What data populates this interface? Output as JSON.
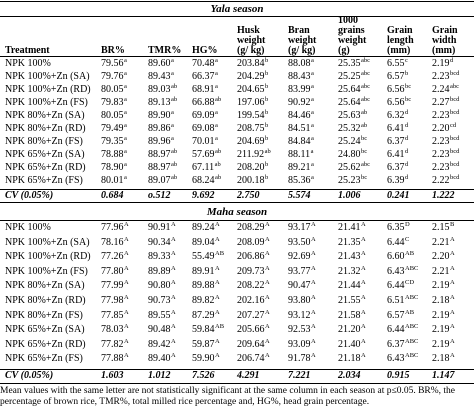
{
  "table": {
    "season1_title": "Yala season",
    "season2_title": "Maha season",
    "headers": [
      {
        "lines": [
          "Treatment"
        ]
      },
      {
        "lines": [
          "BR%"
        ]
      },
      {
        "lines": [
          "TMR%"
        ]
      },
      {
        "lines": [
          "HG%"
        ]
      },
      {
        "lines": [
          "Husk",
          "weight",
          "(g/ kg)"
        ]
      },
      {
        "lines": [
          "Bran",
          "weight",
          "(g/ kg)"
        ]
      },
      {
        "lines": [
          "1000",
          "grains",
          "weight",
          "(g)"
        ]
      },
      {
        "lines": [
          "Grain",
          "length",
          "(mm)"
        ]
      },
      {
        "lines": [
          "Grain",
          "width",
          "(mm)"
        ]
      }
    ],
    "yala_rows": [
      [
        [
          "NPK 100%",
          ""
        ],
        [
          "79.56",
          "a"
        ],
        [
          "89.60",
          "a"
        ],
        [
          "70.48",
          "a"
        ],
        [
          "203.84",
          "b"
        ],
        [
          "88.08",
          "a"
        ],
        [
          "25.35",
          "abc"
        ],
        [
          "6.55",
          "c"
        ],
        [
          "2.19",
          "d"
        ]
      ],
      [
        [
          "NPK 100%+Zn (SA)",
          ""
        ],
        [
          "79.76",
          "a"
        ],
        [
          "89.43",
          "a"
        ],
        [
          "66.37",
          "a"
        ],
        [
          "204.29",
          "b"
        ],
        [
          "88.43",
          "a"
        ],
        [
          "25.25",
          "abc"
        ],
        [
          "6.57",
          "b"
        ],
        [
          "2.23",
          "bcd"
        ]
      ],
      [
        [
          "NPK 100%+Zn (RD)",
          ""
        ],
        [
          "80.05",
          "a"
        ],
        [
          "89.03",
          "ab"
        ],
        [
          "68.91",
          "a"
        ],
        [
          "204.65",
          "b"
        ],
        [
          "83.99",
          "a"
        ],
        [
          "25.64",
          "abc"
        ],
        [
          "6.56",
          "bc"
        ],
        [
          "2.24",
          "abc"
        ]
      ],
      [
        [
          "NPK 100%+Zn (FS)",
          ""
        ],
        [
          "79.83",
          "a"
        ],
        [
          "89.13",
          "ab"
        ],
        [
          "66.88",
          "ab"
        ],
        [
          "197.06",
          "b"
        ],
        [
          "90.92",
          "a"
        ],
        [
          "25.64",
          "abc"
        ],
        [
          "6.56",
          "bc"
        ],
        [
          "2.27",
          "bcd"
        ]
      ],
      [
        [
          "NPK 80%+Zn (SA)",
          ""
        ],
        [
          "80.05",
          "a"
        ],
        [
          "89.90",
          "a"
        ],
        [
          "69.09",
          "a"
        ],
        [
          "199.54",
          "b"
        ],
        [
          "84.46",
          "a"
        ],
        [
          "25.63",
          "ab"
        ],
        [
          "6.32",
          "d"
        ],
        [
          "2.23",
          "bcd"
        ]
      ],
      [
        [
          "NPK 80%+Zn (RD)",
          ""
        ],
        [
          "79.49",
          "a"
        ],
        [
          "89.86",
          "a"
        ],
        [
          "69.08",
          "a"
        ],
        [
          "208.75",
          "b"
        ],
        [
          "84.51",
          "a"
        ],
        [
          "25.32",
          "ab"
        ],
        [
          "6.41",
          "d"
        ],
        [
          "2.20",
          "cd"
        ]
      ],
      [
        [
          "NPK 80%+Zn (FS)",
          ""
        ],
        [
          "79.35",
          "a"
        ],
        [
          "89.96",
          "a"
        ],
        [
          "70.01",
          "a"
        ],
        [
          "204.69",
          "b"
        ],
        [
          "84.84",
          "a"
        ],
        [
          "25.24",
          "bc"
        ],
        [
          "6.37",
          "d"
        ],
        [
          "2.23",
          "bcd"
        ]
      ],
      [
        [
          "NPK 65%+Zn (SA)",
          ""
        ],
        [
          "78.88",
          "a"
        ],
        [
          "88.97",
          "ab"
        ],
        [
          "57.69",
          "ab"
        ],
        [
          "211.92",
          "ab"
        ],
        [
          "88.11",
          "a"
        ],
        [
          "24.80",
          "bc"
        ],
        [
          "6.41",
          "d"
        ],
        [
          "2.23",
          "bcd"
        ]
      ],
      [
        [
          "NPK 65%+Zn (RD)",
          ""
        ],
        [
          "78.90",
          "a"
        ],
        [
          "88.97",
          "ab"
        ],
        [
          "67.11",
          "ab"
        ],
        [
          "208.20",
          "b"
        ],
        [
          "89.21",
          "a"
        ],
        [
          "25.62",
          "abc"
        ],
        [
          "6.37",
          "d"
        ],
        [
          "2.23",
          "bcd"
        ]
      ],
      [
        [
          "NPK 65%+Zn (FS)",
          ""
        ],
        [
          "80.01",
          "a"
        ],
        [
          "89.07",
          "ab"
        ],
        [
          "68.24",
          "ab"
        ],
        [
          "200.18",
          "b"
        ],
        [
          "85.36",
          "a"
        ],
        [
          "25.23",
          "bc"
        ],
        [
          "6.39",
          "d"
        ],
        [
          "2.22",
          "bcd"
        ]
      ]
    ],
    "yala_cv": [
      "CV (0.05%)",
      "0.684",
      "o.512",
      "9.692",
      "2.750",
      "5.574",
      "1.006",
      "0.241",
      "1.222"
    ],
    "maha_rows": [
      [
        [
          "NPK 100%",
          ""
        ],
        [
          "77.96",
          "A"
        ],
        [
          "90.91",
          "A"
        ],
        [
          "89.24",
          "A"
        ],
        [
          "208.29",
          "A"
        ],
        [
          "93.17",
          "A"
        ],
        [
          "21.41",
          "A"
        ],
        [
          "6.35",
          "D"
        ],
        [
          "2.15",
          "B"
        ]
      ],
      [
        [
          "NPK 100%+Zn (SA)",
          ""
        ],
        [
          "78.16",
          "A"
        ],
        [
          "90.34",
          "A"
        ],
        [
          "89.04",
          "A"
        ],
        [
          "208.09",
          "A"
        ],
        [
          "93.50",
          "A"
        ],
        [
          "21.35",
          "A"
        ],
        [
          "6.44",
          "C"
        ],
        [
          "2.21",
          "A"
        ]
      ],
      [
        [
          "NPK 100%+Zn (RD)",
          ""
        ],
        [
          "77.26",
          "A"
        ],
        [
          "89.33",
          "A"
        ],
        [
          "55.49",
          "AB"
        ],
        [
          "206.86",
          "A"
        ],
        [
          "92.69",
          "A"
        ],
        [
          "21.43",
          "A"
        ],
        [
          "6.60",
          "AB"
        ],
        [
          "2.20",
          "A"
        ]
      ],
      [
        [
          "NPK 100%+Zn (FS)",
          ""
        ],
        [
          "77.80",
          "A"
        ],
        [
          "89.89",
          "A"
        ],
        [
          "89.91",
          "A"
        ],
        [
          "209.73",
          "A"
        ],
        [
          "93.77",
          "A"
        ],
        [
          "21.32",
          "A"
        ],
        [
          "6.43",
          "ABC"
        ],
        [
          "2.21",
          "A"
        ]
      ],
      [
        [
          "NPK 80%+Zn (SA)",
          ""
        ],
        [
          "77.99",
          "A"
        ],
        [
          "90.80",
          "A"
        ],
        [
          "89.88",
          "A"
        ],
        [
          "208.22",
          "A"
        ],
        [
          "90.47",
          "A"
        ],
        [
          "21.44",
          "A"
        ],
        [
          "6.44",
          "CD"
        ],
        [
          "2.19",
          "A"
        ]
      ],
      [
        [
          "NPK 80%+Zn (RD)",
          ""
        ],
        [
          "77.98",
          "A"
        ],
        [
          "90.73",
          "A"
        ],
        [
          "89.82",
          "A"
        ],
        [
          "202.16",
          "A"
        ],
        [
          "93.80",
          "A"
        ],
        [
          "21.55",
          "A"
        ],
        [
          "6.51",
          "ABC"
        ],
        [
          "2.18",
          "A"
        ]
      ],
      [
        [
          "NPK 80%+Zn (FS)",
          ""
        ],
        [
          "77.85",
          "A"
        ],
        [
          "89.55",
          "A"
        ],
        [
          "87.29",
          "A"
        ],
        [
          "207.27",
          "A"
        ],
        [
          "93.12",
          "A"
        ],
        [
          "21.58",
          "A"
        ],
        [
          "6.57",
          "AB"
        ],
        [
          "2.19",
          "A"
        ]
      ],
      [
        [
          "NPK 65%+Zn (SA)",
          ""
        ],
        [
          "78.03",
          "A"
        ],
        [
          "90.48",
          "A"
        ],
        [
          "59.84",
          "AB"
        ],
        [
          "205.66",
          "A"
        ],
        [
          "92.53",
          "A"
        ],
        [
          "21.20",
          "A"
        ],
        [
          "6.44",
          "ABC"
        ],
        [
          "2.19",
          "A"
        ]
      ],
      [
        [
          "NPK 65%+Zn (RD)",
          ""
        ],
        [
          "77.82",
          "A"
        ],
        [
          "89.42",
          "A"
        ],
        [
          "59.87",
          "A"
        ],
        [
          "209.64",
          "A"
        ],
        [
          "93.09",
          "A"
        ],
        [
          "21.40",
          "A"
        ],
        [
          "6.37",
          "ABC"
        ],
        [
          "2.19",
          "A"
        ]
      ],
      [
        [
          "NPK 65%+Zn (FS)",
          ""
        ],
        [
          "77.88",
          "A"
        ],
        [
          "89.40",
          "A"
        ],
        [
          "59.90",
          "A"
        ],
        [
          "206.74",
          "A"
        ],
        [
          "91.78",
          "A"
        ],
        [
          "21.18",
          "A"
        ],
        [
          "6.43",
          "ABC"
        ],
        [
          "2.18",
          "A"
        ]
      ]
    ],
    "maha_cv": [
      "CV (0.05%)",
      "1.603",
      "1.012",
      "7.526",
      "4.291",
      "7.221",
      "2.034",
      "0.915",
      "1.147"
    ],
    "footnote": [
      "Mean values with the same letter are not statistically significant at the same column in each season at p≤0.05. BR%, the",
      "percentage of brown rice, TMR%, total milled rice percentage and, HG%, head grain percentage."
    ]
  }
}
